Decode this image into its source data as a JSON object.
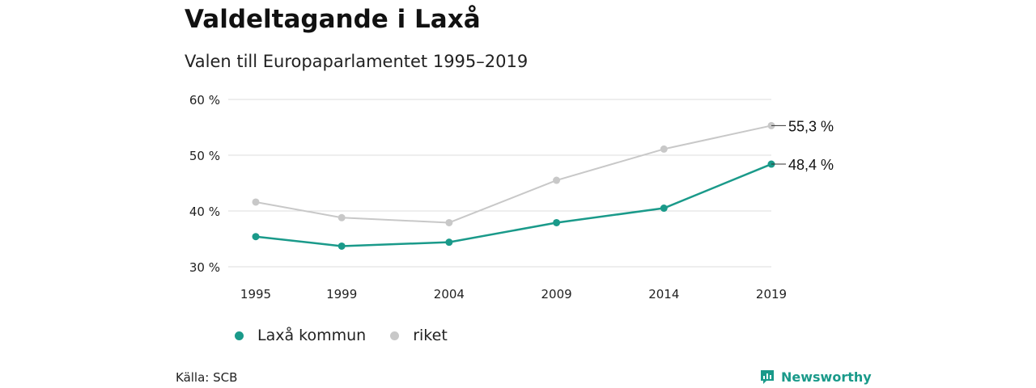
{
  "title": "Valdeltagande i Laxå",
  "subtitle": "Valen till Europaparlamentet 1995–2019",
  "source": "Källa: SCB",
  "brand": {
    "name": "Newsworthy",
    "icon": "newsworthy-logo-icon",
    "color": "#1a9a8a"
  },
  "chart_data": {
    "type": "line",
    "title": "Valdeltagande i Laxå",
    "subtitle": "Valen till Europaparlamentet 1995–2019",
    "categories": [
      "1995",
      "1999",
      "2004",
      "2009",
      "2014",
      "2019"
    ],
    "x": [
      1995,
      1999,
      2004,
      2009,
      2014,
      2019
    ],
    "series": [
      {
        "name": "Laxå kommun",
        "color": "#1a9a8a",
        "values": [
          35.4,
          33.7,
          34.4,
          37.9,
          40.5,
          48.4
        ],
        "end_label": "48,4 %"
      },
      {
        "name": "riket",
        "color": "#c8c8c8",
        "values": [
          41.6,
          38.8,
          37.9,
          45.5,
          51.1,
          55.3
        ],
        "end_label": "55,3 %"
      }
    ],
    "yticks": [
      "30 %",
      "40 %",
      "50 %",
      "60 %"
    ],
    "ytick_values": [
      30,
      40,
      50,
      60
    ],
    "ylim": [
      30,
      60
    ],
    "grid": true,
    "legend": "bottom-left"
  }
}
